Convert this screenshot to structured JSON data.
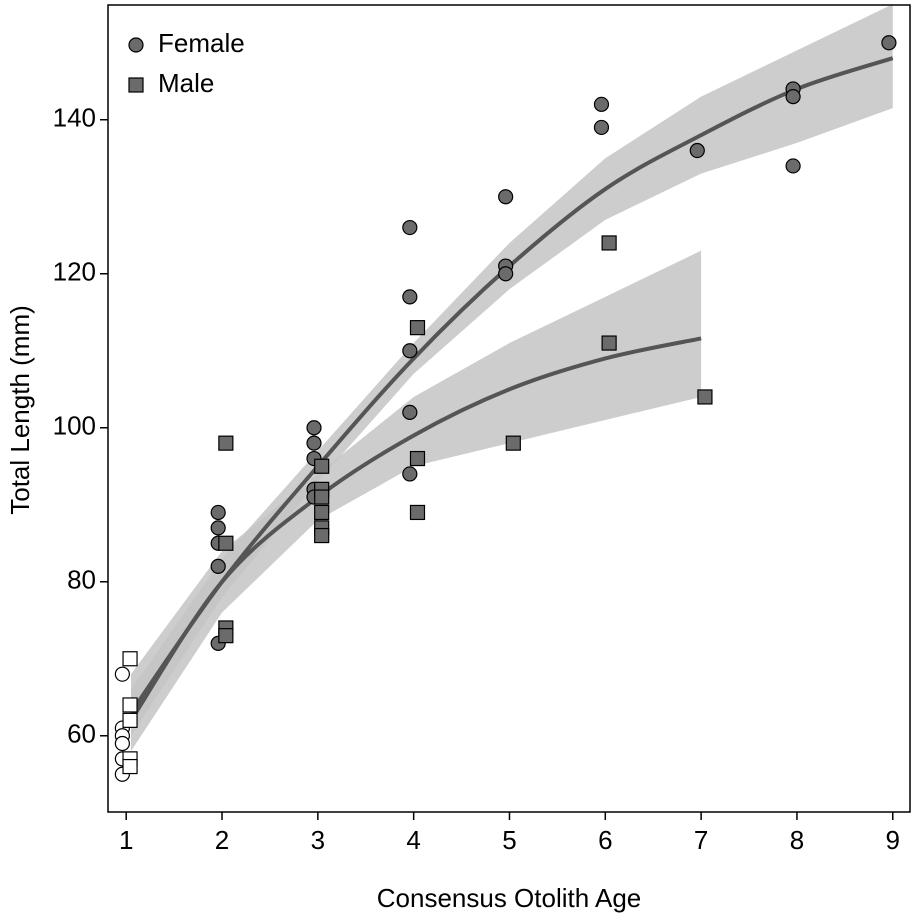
{
  "chart_data": {
    "type": "scatter",
    "x_label": "Consensus Otolith Age",
    "y_label": "Total Length (mm)",
    "xlim": [
      0.81,
      9.18
    ],
    "ylim": [
      50.1,
      154.9
    ],
    "xticks": [
      1,
      2,
      3,
      4,
      5,
      6,
      7,
      8,
      9
    ],
    "yticks": [
      60,
      80,
      100,
      120,
      140
    ],
    "grid": false,
    "legend": "top-left",
    "series": [
      {
        "name": "Female",
        "marker": "circle",
        "color": "#6b6b6b",
        "x": [
          0.96,
          0.96,
          0.96,
          0.96,
          0.96,
          0.96,
          1.96,
          1.96,
          1.96,
          1.96,
          1.96,
          2.96,
          2.96,
          2.96,
          2.96,
          2.96,
          3.96,
          3.96,
          3.96,
          3.96,
          3.96,
          4.96,
          4.96,
          4.96,
          5.96,
          5.96,
          6.96,
          7.96,
          7.96,
          7.96,
          8.96
        ],
        "values": [
          68,
          61,
          60,
          59,
          57,
          55,
          89,
          87,
          85,
          82,
          72,
          100,
          98,
          96,
          92,
          91,
          126,
          117,
          110,
          102,
          94,
          130,
          121,
          120,
          142,
          139,
          136,
          144,
          143,
          134,
          150
        ],
        "filled": [
          false,
          false,
          false,
          false,
          false,
          false,
          true,
          true,
          true,
          true,
          true,
          true,
          true,
          true,
          true,
          true,
          true,
          true,
          true,
          true,
          true,
          true,
          true,
          true,
          true,
          true,
          true,
          true,
          true,
          true,
          true
        ]
      },
      {
        "name": "Male",
        "marker": "square",
        "color": "#6b6b6b",
        "x": [
          1.04,
          1.04,
          1.04,
          1.04,
          1.04,
          2.04,
          2.04,
          2.04,
          2.04,
          3.04,
          3.04,
          3.04,
          3.04,
          3.04,
          3.04,
          4.04,
          4.04,
          4.04,
          5.04,
          6.04,
          6.04,
          7.04
        ],
        "values": [
          70,
          64,
          62,
          57,
          56,
          98,
          85,
          74,
          73,
          95,
          92,
          91,
          89,
          87,
          86,
          113,
          96,
          89,
          98,
          124,
          111,
          104
        ],
        "filled": [
          false,
          false,
          false,
          false,
          false,
          true,
          true,
          true,
          true,
          true,
          true,
          true,
          true,
          true,
          true,
          true,
          true,
          true,
          true,
          true,
          true,
          true
        ]
      }
    ],
    "fits": [
      {
        "color": "#555555",
        "band_color": "#c4c4c4",
        "x": [
          1.05,
          2,
          3,
          4,
          5,
          6,
          7,
          8,
          9
        ],
        "values": [
          63,
          80,
          95,
          109,
          121,
          131,
          138,
          144,
          148
        ],
        "lower": [
          60,
          78,
          93,
          107,
          118,
          127,
          133,
          137,
          141.5
        ],
        "upper": [
          66,
          83,
          97,
          111,
          124,
          135,
          143,
          149,
          155
        ]
      },
      {
        "color": "#555555",
        "band_color": "#c4c4c4",
        "x": [
          1.05,
          2,
          3,
          4,
          5,
          6,
          7
        ],
        "values": [
          62,
          80,
          91,
          99,
          105,
          109,
          111.6
        ],
        "lower": [
          58,
          76,
          88,
          95,
          98,
          101,
          104
        ],
        "upper": [
          68,
          84,
          94,
          104,
          111,
          117,
          123
        ]
      }
    ]
  }
}
